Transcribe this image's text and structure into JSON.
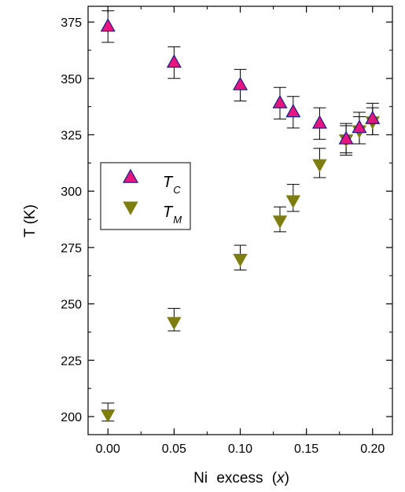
{
  "chart_data": {
    "type": "scatter",
    "xlabel_main": "Ni excess",
    "xlabel_var": "x",
    "ylabel": "T (K)",
    "xlim": [
      -0.015,
      0.215
    ],
    "ylim": [
      192,
      382
    ],
    "xticks": [
      "0.00",
      "0.05",
      "0.10",
      "0.15",
      "0.20"
    ],
    "yticks": [
      "200",
      "225",
      "250",
      "275",
      "300",
      "325",
      "350",
      "375"
    ],
    "grid": false,
    "legend_position": "left-center",
    "series": [
      {
        "name_base": "T",
        "name_sub": "C",
        "marker": "triangle-up",
        "fill": "#e8157e",
        "stroke": "#1a1a8a",
        "points": [
          {
            "x": 0.0,
            "y": 373,
            "err_lo": 7,
            "err_hi": 7
          },
          {
            "x": 0.05,
            "y": 357,
            "err_lo": 7,
            "err_hi": 7
          },
          {
            "x": 0.1,
            "y": 347,
            "err_lo": 7,
            "err_hi": 7
          },
          {
            "x": 0.13,
            "y": 339,
            "err_lo": 7,
            "err_hi": 7
          },
          {
            "x": 0.14,
            "y": 335,
            "err_lo": 7,
            "err_hi": 7
          },
          {
            "x": 0.16,
            "y": 330,
            "err_lo": 7,
            "err_hi": 7
          },
          {
            "x": 0.18,
            "y": 323,
            "err_lo": 7,
            "err_hi": 7
          },
          {
            "x": 0.19,
            "y": 328,
            "err_lo": 7,
            "err_hi": 7
          },
          {
            "x": 0.2,
            "y": 332,
            "err_lo": 7,
            "err_hi": 7
          }
        ]
      },
      {
        "name_base": "T",
        "name_sub": "M",
        "marker": "triangle-down",
        "fill": "#7d7d10",
        "stroke": "#7d7d10",
        "points": [
          {
            "x": 0.0,
            "y": 201,
            "err_lo": 3,
            "err_hi": 5
          },
          {
            "x": 0.05,
            "y": 242,
            "err_lo": 4,
            "err_hi": 6
          },
          {
            "x": 0.1,
            "y": 270,
            "err_lo": 5,
            "err_hi": 6
          },
          {
            "x": 0.13,
            "y": 287,
            "err_lo": 5,
            "err_hi": 6
          },
          {
            "x": 0.14,
            "y": 296,
            "err_lo": 5,
            "err_hi": 7
          },
          {
            "x": 0.16,
            "y": 312,
            "err_lo": 6,
            "err_hi": 7
          },
          {
            "x": 0.18,
            "y": 323,
            "err_lo": 6,
            "err_hi": 6
          },
          {
            "x": 0.19,
            "y": 327,
            "err_lo": 6,
            "err_hi": 6
          },
          {
            "x": 0.2,
            "y": 331,
            "err_lo": 6,
            "err_hi": 6
          }
        ]
      }
    ]
  }
}
